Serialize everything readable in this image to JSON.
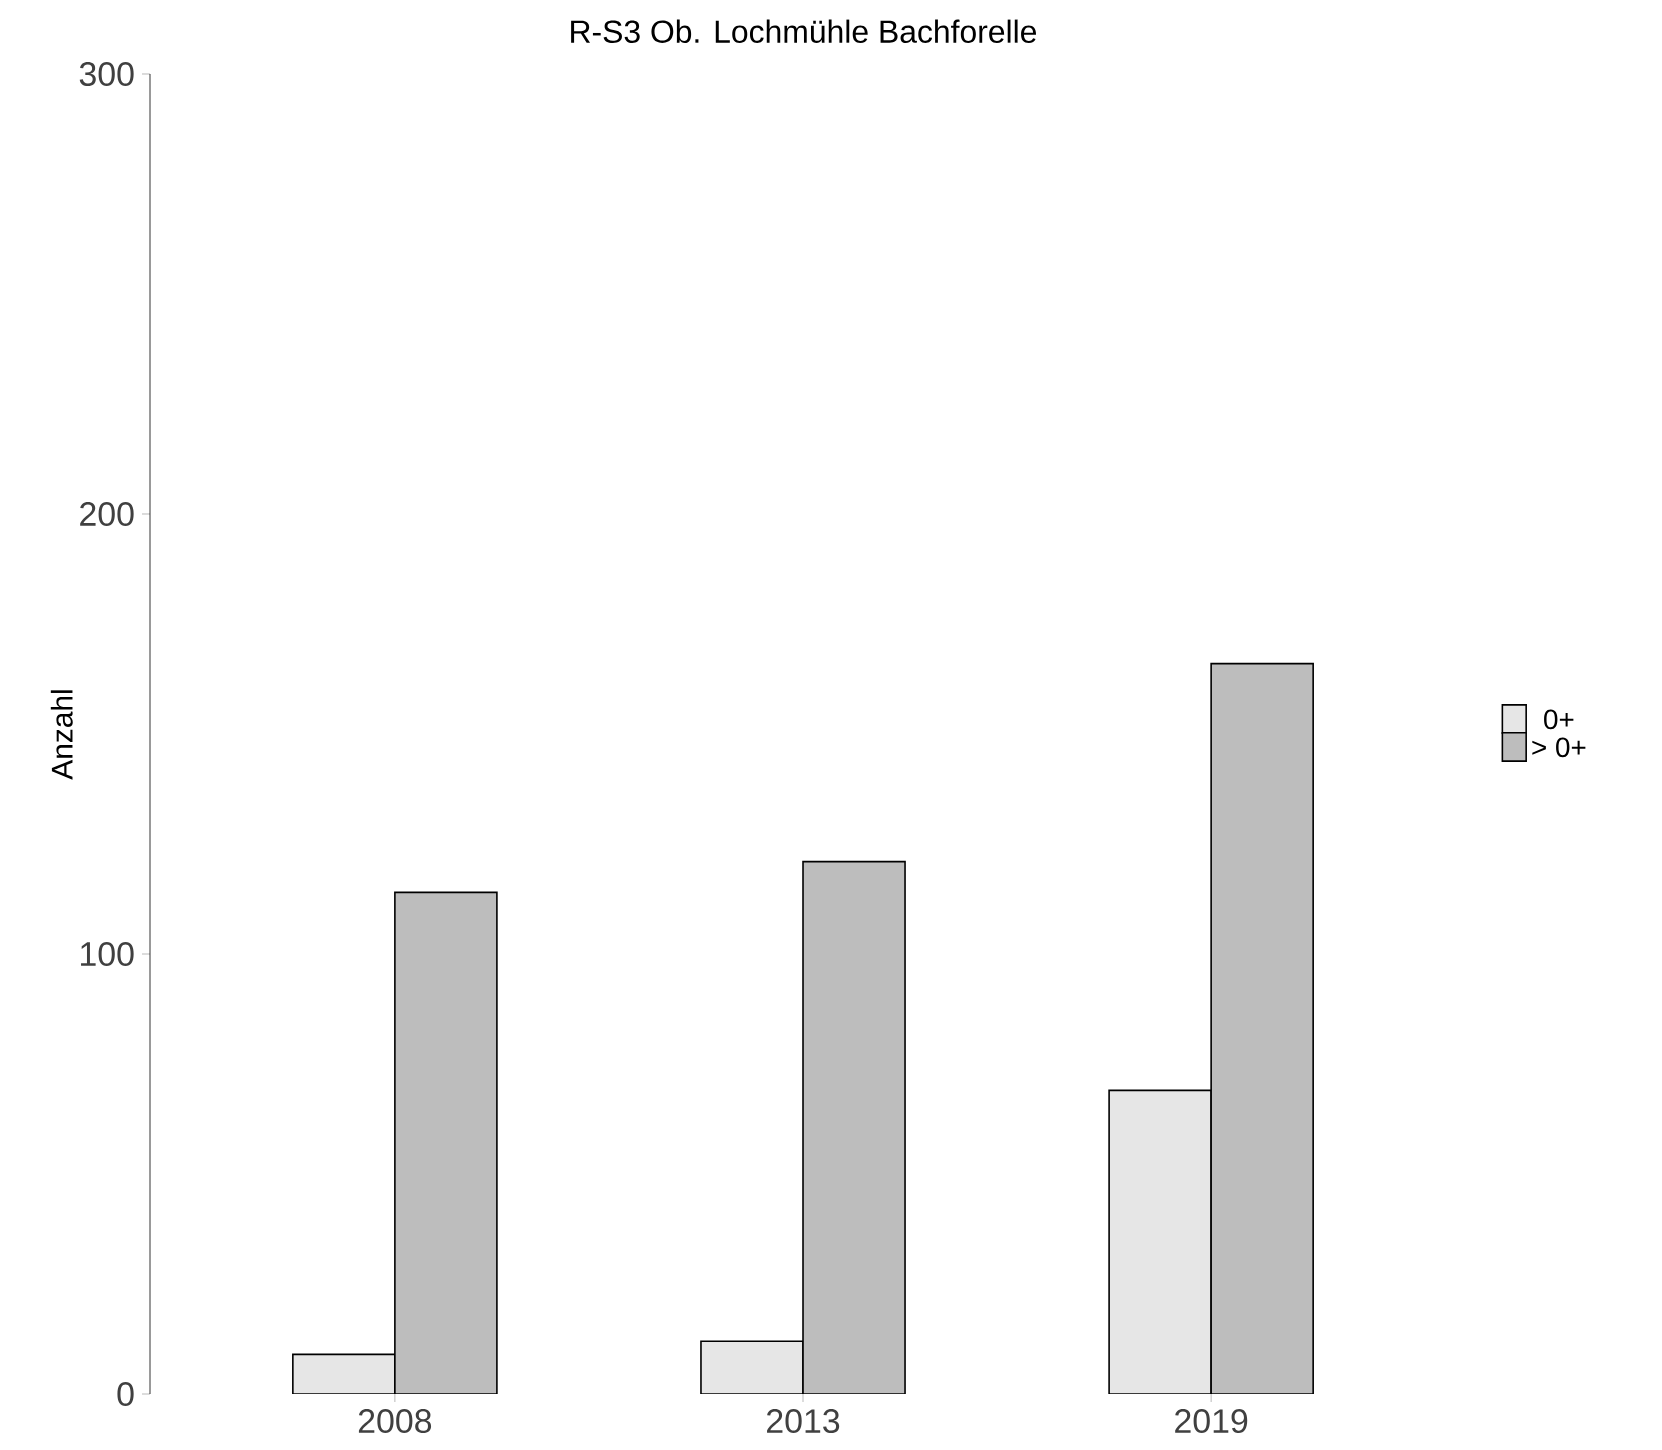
{
  "chart_data": {
    "type": "bar",
    "title": "R-S3 Ob. Lochmühle Bachforelle",
    "ylabel": "Anzahl",
    "categories": [
      "2008",
      "2013",
      "2019"
    ],
    "series": [
      {
        "name": "0+",
        "color": "#e6e6e6",
        "values": [
          9,
          12,
          69
        ]
      },
      {
        "name": "> 0+",
        "color": "#bdbdbd",
        "values": [
          114,
          121,
          166
        ]
      }
    ],
    "ylim": [
      0,
      300
    ],
    "yticks": [
      0,
      100,
      200,
      300
    ],
    "grid": false,
    "legend": "right"
  }
}
